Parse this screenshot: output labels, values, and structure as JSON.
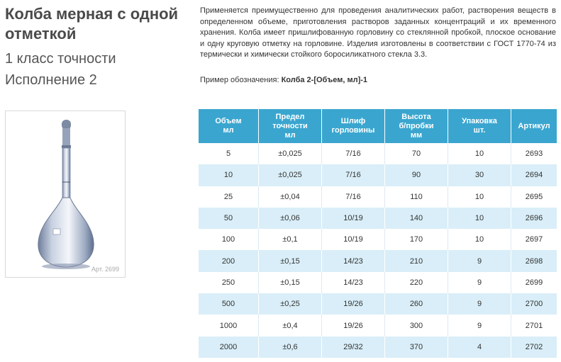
{
  "heading": {
    "title": "Колба мерная с одной отметкой",
    "class_line": "1 класс точности",
    "variant_line": "Исполнение 2"
  },
  "image": {
    "article_caption": "Арт. 2699",
    "icon": "volumetric-flask-icon"
  },
  "description": "Применяется преимущественно для проведения аналитических работ, растворения веществ в определенном объеме, приготовления растворов заданных концентраций и их временного хранения. Колба имеет пришлифованную горловину со стеклянной пробкой, плоское основание и одну круговую  отметку на горловине. Изделия изготовлены в соответствии с ГОСТ 1770-74 из термически и химически стойкого боросиликатного стекла 3.3.",
  "example": {
    "label": "Пример обозначения: ",
    "value": "Колба 2-[Объем, мл]-1"
  },
  "table": {
    "headers": [
      "Объем\nмл",
      "Предел\nточности\nмл",
      "Шлиф\nгорловины",
      "Высота\nб/пробки\nмм",
      "Упаковка\nшт.",
      "Артикул"
    ],
    "rows": [
      [
        "5",
        "±0,025",
        "7/16",
        "70",
        "10",
        "2693"
      ],
      [
        "10",
        "±0,025",
        "7/16",
        "90",
        "30",
        "2694"
      ],
      [
        "25",
        "±0,04",
        "7/16",
        "110",
        "10",
        "2695"
      ],
      [
        "50",
        "±0,06",
        "10/19",
        "140",
        "10",
        "2696"
      ],
      [
        "100",
        "±0,1",
        "10/19",
        "170",
        "10",
        "2697"
      ],
      [
        "200",
        "±0,15",
        "14/23",
        "210",
        "9",
        "2698"
      ],
      [
        "250",
        "±0,15",
        "14/23",
        "220",
        "9",
        "2699"
      ],
      [
        "500",
        "±0,25",
        "19/26",
        "260",
        "9",
        "2700"
      ],
      [
        "1000",
        "±0,4",
        "19/26",
        "300",
        "9",
        "2701"
      ],
      [
        "2000",
        "±0,6",
        "29/32",
        "370",
        "4",
        "2702"
      ]
    ]
  }
}
